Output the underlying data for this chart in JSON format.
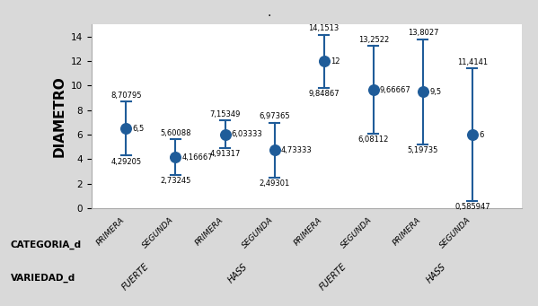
{
  "points": [
    {
      "x": 1,
      "mean": 6.5,
      "upper": 8.70795,
      "lower": 4.29205,
      "mean_label": "6,5"
    },
    {
      "x": 2,
      "mean": 4.16667,
      "upper": 5.60088,
      "lower": 2.73245,
      "mean_label": "4,16667"
    },
    {
      "x": 3,
      "mean": 6.03333,
      "upper": 7.15349,
      "lower": 4.91317,
      "mean_label": "6,03333"
    },
    {
      "x": 4,
      "mean": 4.73333,
      "upper": 6.97365,
      "lower": 2.49301,
      "mean_label": "4,73333"
    },
    {
      "x": 5,
      "mean": 12.0,
      "upper": 14.1513,
      "lower": 9.84867,
      "mean_label": "12"
    },
    {
      "x": 6,
      "mean": 9.66667,
      "upper": 13.2522,
      "lower": 6.08112,
      "mean_label": "9,66667"
    },
    {
      "x": 7,
      "mean": 9.5,
      "upper": 13.8027,
      "lower": 5.19735,
      "mean_label": "9,5"
    },
    {
      "x": 8,
      "mean": 6.0,
      "upper": 11.4141,
      "lower": 0.585947,
      "mean_label": "6"
    }
  ],
  "upper_labels": [
    "8,70795",
    "5,60088",
    "7,15349",
    "6,97365",
    "14,1513",
    "13,2522",
    "13,8027",
    "11,4141"
  ],
  "lower_labels": [
    "4,29205",
    "2,73245",
    "4,91317",
    "2,49301",
    "9,84867",
    "6,08112",
    "5,19735",
    "0,585947"
  ],
  "dot_color": "#1F5C99",
  "line_color": "#1F5C99",
  "bg_color": "#D9D9D9",
  "plot_bg": "#FFFFFF",
  "ylabel": "DIAMETRO",
  "ylim": [
    0,
    15
  ],
  "yticks": [
    0,
    2,
    4,
    6,
    8,
    10,
    12,
    14
  ],
  "xlim": [
    0.3,
    9.0
  ],
  "categoria_labels": [
    "PRIMERA",
    "SEGUNDA",
    "PRIMERA",
    "SEGUNDA",
    "PRIMERA",
    "SEGUNDA",
    "PRIMERA",
    "SEGUNDA"
  ],
  "variedad_groups": [
    {
      "label": "FUERTE",
      "x_center": 1.5
    },
    {
      "label": "HASS",
      "x_center": 3.5
    },
    {
      "label": "FUERTE",
      "x_center": 5.5
    },
    {
      "label": "HASS",
      "x_center": 7.5
    }
  ],
  "categoria_label": "CATEGORIA_d",
  "variedad_label": "VARIEDAD_d",
  "dot_size": 70,
  "title_dot": "."
}
